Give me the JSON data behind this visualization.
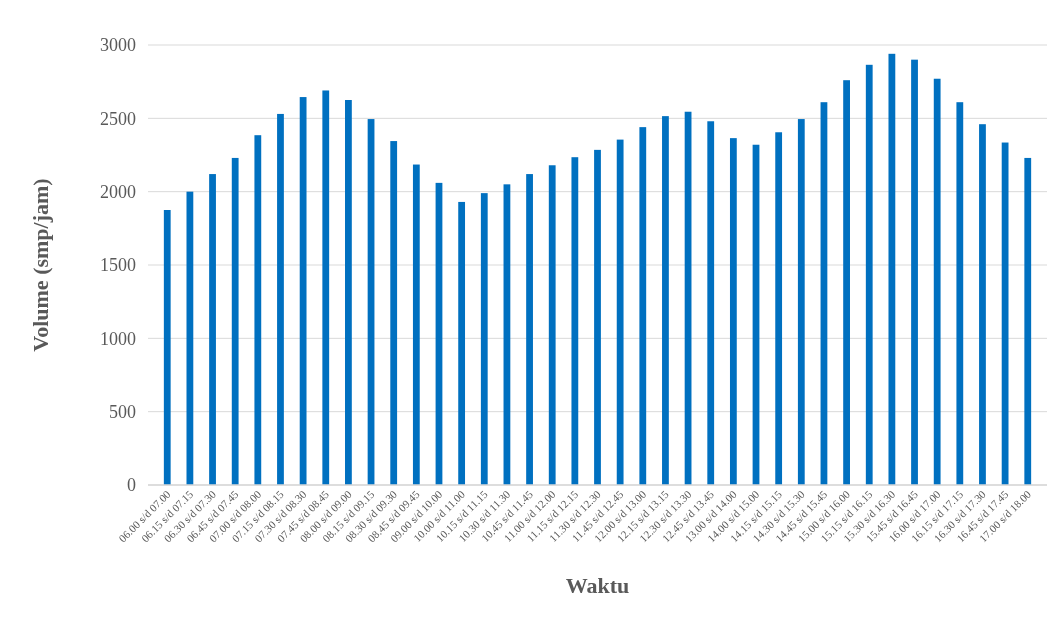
{
  "chart_data": {
    "type": "bar",
    "xlabel": "Waktu",
    "ylabel": "Volume (smp/jam)",
    "categories": [
      "06.00 s/d 07.00",
      "06.15 s/d 07.15",
      "06.30 s/d 07.30",
      "06.45 s/d 07.45",
      "07.00 s/d 08.00",
      "07.15 s/d 08.15",
      "07.30 s/d 08.30",
      "07.45 s/d 08.45",
      "08.00 s/d 09.00",
      "08.15 s/d 09.15",
      "08.30 s/d 09.30",
      "08.45 s/d 09.45",
      "09.00 s/d 10.00",
      "10.00 s/d 11.00",
      "10.15 s/d 11.15",
      "10.30 s/d 11.30",
      "10.45 s/d 11.45",
      "11.00 s/d 12.00",
      "11.15 s/d 12.15",
      "11.30 s/d 12.30",
      "11.45 s/d 12.45",
      "12.00 s/d 13.00",
      "12.15 s/d 13.15",
      "12.30 s/d 13.30",
      "12.45 s/d 13.45",
      "13.00 s/d 14.00",
      "14.00 s/d 15.00",
      "14.15 s/d 15.15",
      "14.30 s/d 15.30",
      "14.45 s/d 15.45",
      "15.00 s/d 16.00",
      "15.15 s/d 16.15",
      "15.30 s/d 16.30",
      "15.45 s/d 16.45",
      "16.00 s/d 17.00",
      "16.15 s/d 17.15",
      "16.30 s/d 17.30",
      "16.45 s/d 17.45",
      "17.00 s/d 18.00"
    ],
    "values": [
      1875,
      2000,
      2120,
      2230,
      2385,
      2530,
      2645,
      2690,
      2625,
      2495,
      2345,
      2185,
      2060,
      1930,
      1990,
      2050,
      2120,
      2180,
      2235,
      2285,
      2355,
      2440,
      2515,
      2545,
      2480,
      2365,
      2320,
      2405,
      2495,
      2610,
      2760,
      2865,
      2940,
      2900,
      2770,
      2610,
      2460,
      2335,
      2230
    ],
    "color": "#0070c0",
    "ylim": [
      0,
      3000
    ],
    "yticks": [
      0,
      500,
      1000,
      1500,
      2000,
      2500,
      3000
    ],
    "grid": "y"
  }
}
